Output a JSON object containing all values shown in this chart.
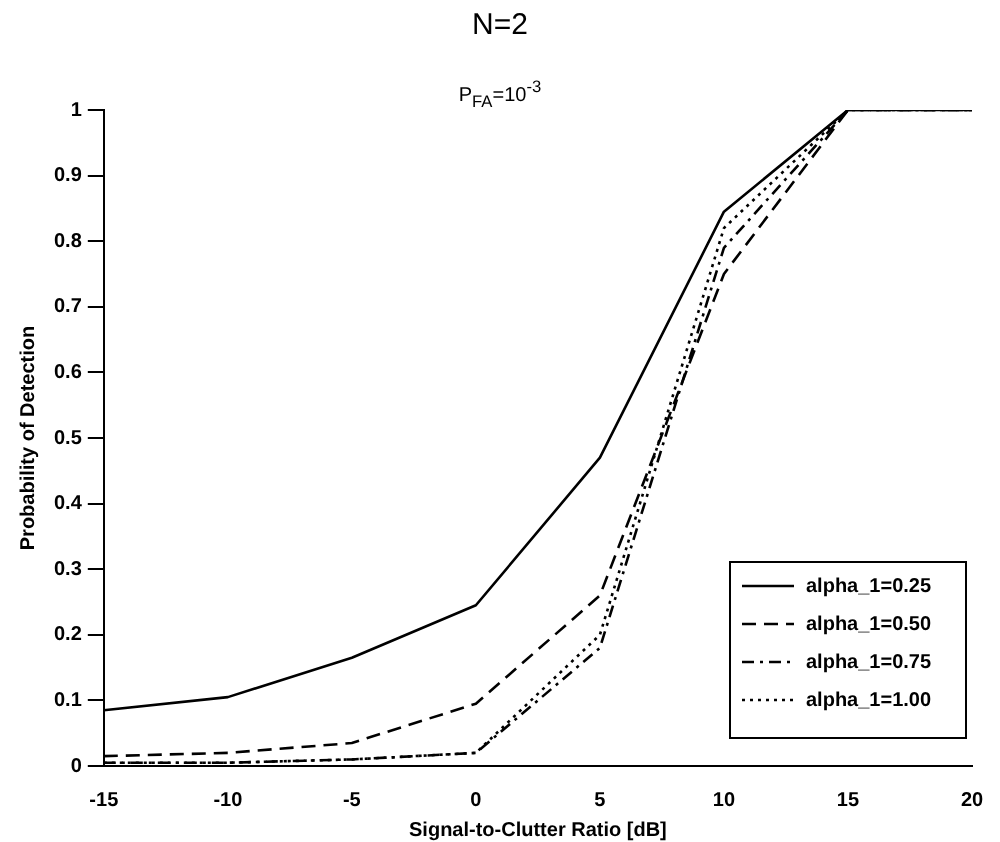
{
  "chart_data": {
    "type": "line",
    "title": "N=2",
    "subtitle": "P$_{FA}$=10$^{-3}$",
    "xlabel": "Signal-to-Clutter Ratio [dB]",
    "ylabel": "Probability of Detection",
    "x": [
      -15,
      -10,
      -5,
      0,
      5,
      10,
      15,
      20
    ],
    "series": [
      {
        "name": "alpha_1=0.25",
        "color": "#000000",
        "line_style": "solid",
        "values": [
          0.085,
          0.105,
          0.165,
          0.245,
          0.47,
          0.845,
          1,
          1
        ]
      },
      {
        "name": "alpha_1=0.50",
        "color": "#000000",
        "line_style": "dashed",
        "values": [
          0.015,
          0.02,
          0.035,
          0.095,
          0.26,
          0.75,
          1,
          1
        ]
      },
      {
        "name": "alpha_1=0.75",
        "color": "#000000",
        "line_style": "dashdot",
        "values": [
          0.005,
          0.005,
          0.01,
          0.02,
          0.18,
          0.79,
          1,
          1
        ]
      },
      {
        "name": "alpha_1=1.00",
        "color": "#000000",
        "line_style": "dotted",
        "values": [
          0.005,
          0.005,
          0.01,
          0.02,
          0.2,
          0.82,
          1,
          1
        ]
      }
    ],
    "xlim": [
      -15,
      20
    ],
    "xticks": [
      -15,
      -10,
      -5,
      0,
      5,
      10,
      15,
      20
    ],
    "ylim": [
      0,
      1
    ],
    "yticks": [
      0,
      0.1,
      0.2,
      0.3,
      0.4,
      0.5,
      0.6,
      0.7,
      0.8,
      0.9,
      1
    ],
    "grid": false,
    "legend": "bottom right",
    "marker": "none"
  }
}
